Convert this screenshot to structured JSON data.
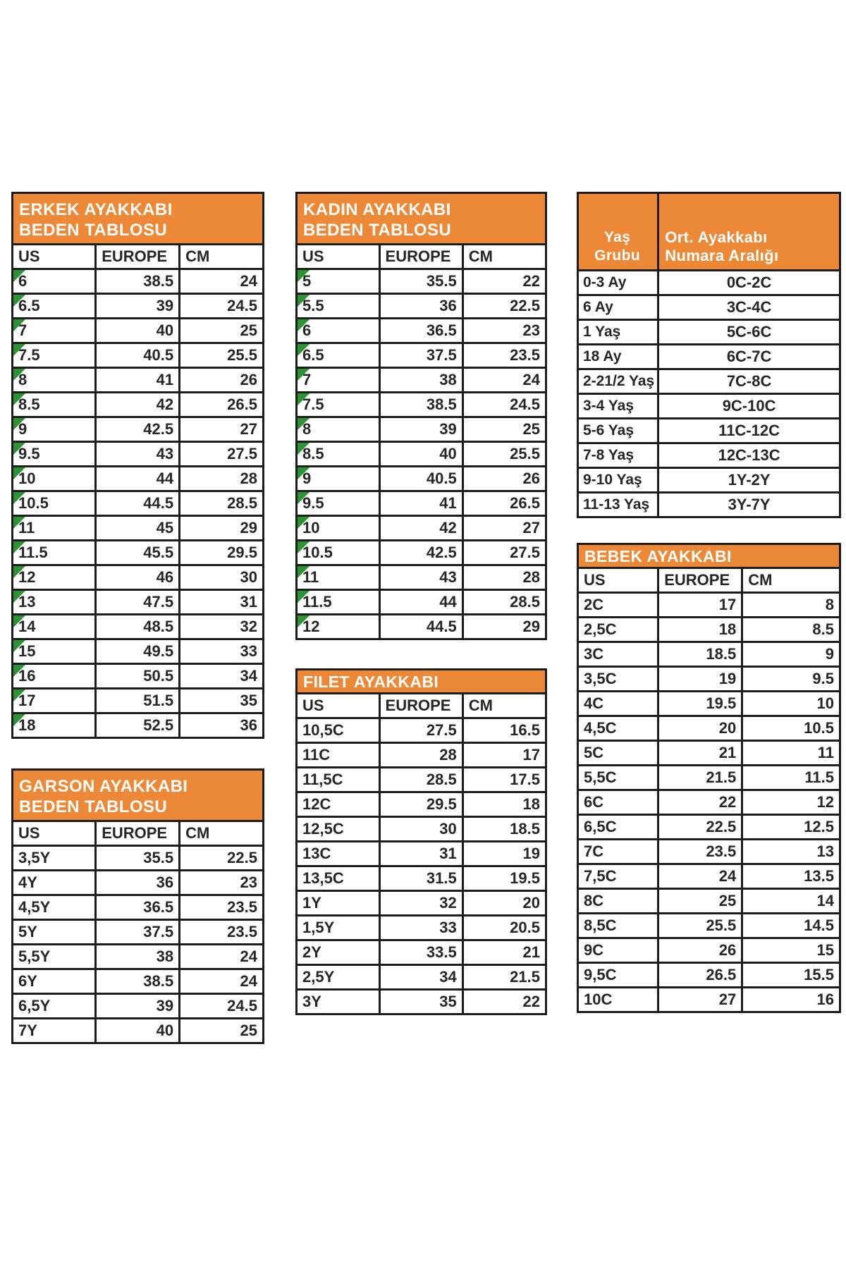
{
  "colors": {
    "header_orange": "#ed8936",
    "border": "#1c1c1c",
    "flag_green": "#2d9434",
    "text": "#262626",
    "header_text": "#ffffff",
    "background": "#ffffff"
  },
  "tables": {
    "erkek": {
      "title_line1": "ERKEK AYAKKABI",
      "title_line2": "BEDEN TABLOSU",
      "columns": [
        "US",
        "EUROPE",
        "CM"
      ],
      "aligns": [
        "left",
        "right",
        "right"
      ],
      "flags": true,
      "rows": [
        [
          "6",
          "38.5",
          "24"
        ],
        [
          "6.5",
          "39",
          "24.5"
        ],
        [
          "7",
          "40",
          "25"
        ],
        [
          "7.5",
          "40.5",
          "25.5"
        ],
        [
          "8",
          "41",
          "26"
        ],
        [
          "8.5",
          "42",
          "26.5"
        ],
        [
          "9",
          "42.5",
          "27"
        ],
        [
          "9.5",
          "43",
          "27.5"
        ],
        [
          "10",
          "44",
          "28"
        ],
        [
          "10.5",
          "44.5",
          "28.5"
        ],
        [
          "11",
          "45",
          "29"
        ],
        [
          "11.5",
          "45.5",
          "29.5"
        ],
        [
          "12",
          "46",
          "30"
        ],
        [
          "13",
          "47.5",
          "31"
        ],
        [
          "14",
          "48.5",
          "32"
        ],
        [
          "15",
          "49.5",
          "33"
        ],
        [
          "16",
          "50.5",
          "34"
        ],
        [
          "17",
          "51.5",
          "35"
        ],
        [
          "18",
          "52.5",
          "36"
        ]
      ]
    },
    "kadin": {
      "title_line1": "KADIN AYAKKABI",
      "title_line2": "BEDEN TABLOSU",
      "columns": [
        "US",
        "EUROPE",
        "CM"
      ],
      "aligns": [
        "left",
        "right",
        "right"
      ],
      "flags": true,
      "rows": [
        [
          "5",
          "35.5",
          "22"
        ],
        [
          "5.5",
          "36",
          "22.5"
        ],
        [
          "6",
          "36.5",
          "23"
        ],
        [
          "6.5",
          "37.5",
          "23.5"
        ],
        [
          "7",
          "38",
          "24"
        ],
        [
          "7.5",
          "38.5",
          "24.5"
        ],
        [
          "8",
          "39",
          "25"
        ],
        [
          "8.5",
          "40",
          "25.5"
        ],
        [
          "9",
          "40.5",
          "26"
        ],
        [
          "9.5",
          "41",
          "26.5"
        ],
        [
          "10",
          "42",
          "27"
        ],
        [
          "10.5",
          "42.5",
          "27.5"
        ],
        [
          "11",
          "43",
          "28"
        ],
        [
          "11.5",
          "44",
          "28.5"
        ],
        [
          "12",
          "44.5",
          "29"
        ]
      ]
    },
    "filet": {
      "title": "FILET AYAKKABI",
      "columns": [
        "US",
        "EUROPE",
        "CM"
      ],
      "aligns": [
        "left",
        "right",
        "right"
      ],
      "flags": false,
      "rows": [
        [
          "10,5C",
          "27.5",
          "16.5"
        ],
        [
          "11C",
          "28",
          "17"
        ],
        [
          "11,5C",
          "28.5",
          "17.5"
        ],
        [
          "12C",
          "29.5",
          "18"
        ],
        [
          "12,5C",
          "30",
          "18.5"
        ],
        [
          "13C",
          "31",
          "19"
        ],
        [
          "13,5C",
          "31.5",
          "19.5"
        ],
        [
          "1Y",
          "32",
          "20"
        ],
        [
          "1,5Y",
          "33",
          "20.5"
        ],
        [
          "2Y",
          "33.5",
          "21"
        ],
        [
          "2,5Y",
          "34",
          "21.5"
        ],
        [
          "3Y",
          "35",
          "22"
        ]
      ]
    },
    "garson": {
      "title_line1": "GARSON AYAKKABI",
      "title_line2": "BEDEN TABLOSU",
      "columns": [
        "US",
        "EUROPE",
        "CM"
      ],
      "aligns": [
        "left",
        "right",
        "right"
      ],
      "flags": false,
      "rows": [
        [
          "3,5Y",
          "35.5",
          "22.5"
        ],
        [
          "4Y",
          "36",
          "23"
        ],
        [
          "4,5Y",
          "36.5",
          "23.5"
        ],
        [
          "5Y",
          "37.5",
          "23.5"
        ],
        [
          "5,5Y",
          "38",
          "24"
        ],
        [
          "6Y",
          "38.5",
          "24"
        ],
        [
          "6,5Y",
          "39",
          "24.5"
        ],
        [
          "7Y",
          "40",
          "25"
        ]
      ]
    },
    "yas": {
      "header_col1": "Yaş Grubu",
      "header_col2_line1": "Ort. Ayakkabı",
      "header_col2_line2": "Numara Aralığı",
      "aligns": [
        "left",
        "center"
      ],
      "flags": false,
      "rows": [
        [
          "0-3 Ay",
          "0C-2C"
        ],
        [
          "6 Ay",
          "3C-4C"
        ],
        [
          "1 Yaş",
          "5C-6C"
        ],
        [
          "18 Ay",
          "6C-7C"
        ],
        [
          "2-21/2 Yaş",
          "7C-8C"
        ],
        [
          "3-4 Yaş",
          "9C-10C"
        ],
        [
          "5-6 Yaş",
          "11C-12C"
        ],
        [
          "7-8 Yaş",
          "12C-13C"
        ],
        [
          "9-10 Yaş",
          "1Y-2Y"
        ],
        [
          "11-13 Yaş",
          "3Y-7Y"
        ]
      ]
    },
    "bebek": {
      "title": "BEBEK AYAKKABI",
      "columns": [
        "US",
        "EUROPE",
        "CM"
      ],
      "aligns": [
        "left",
        "right",
        "right"
      ],
      "flags": false,
      "rows": [
        [
          "2C",
          "17",
          "8"
        ],
        [
          "2,5C",
          "18",
          "8.5"
        ],
        [
          "3C",
          "18.5",
          "9"
        ],
        [
          "3,5C",
          "19",
          "9.5"
        ],
        [
          "4C",
          "19.5",
          "10"
        ],
        [
          "4,5C",
          "20",
          "10.5"
        ],
        [
          "5C",
          "21",
          "11"
        ],
        [
          "5,5C",
          "21.5",
          "11.5"
        ],
        [
          "6C",
          "22",
          "12"
        ],
        [
          "6,5C",
          "22.5",
          "12.5"
        ],
        [
          "7C",
          "23.5",
          "13"
        ],
        [
          "7,5C",
          "24",
          "13.5"
        ],
        [
          "8C",
          "25",
          "14"
        ],
        [
          "8,5C",
          "25.5",
          "14.5"
        ],
        [
          "9C",
          "26",
          "15"
        ],
        [
          "9,5C",
          "26.5",
          "15.5"
        ],
        [
          "10C",
          "27",
          "16"
        ]
      ]
    }
  }
}
